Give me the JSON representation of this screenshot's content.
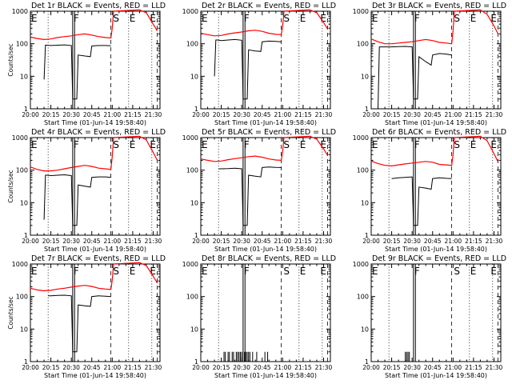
{
  "chart_data": [
    {
      "type": "line",
      "title": "Det 1r BLACK = Events, RED = LLD",
      "xlabel": "Start Time (01-Jun-14 19:58:40)",
      "ylabel": "Counts/sec",
      "x_ticks": [
        "20:00",
        "20:15",
        "20:30",
        "20:45",
        "21:00",
        "21:15",
        "21:30"
      ],
      "y_ticks": [
        "1",
        "10",
        "100",
        "1000"
      ],
      "ylim": [
        1,
        1000
      ],
      "yscale": "log",
      "region_labels": [
        {
          "label": "E",
          "x": "20:00"
        },
        {
          "label": "F",
          "x": "20:31"
        },
        {
          "label": "S",
          "x": "21:00"
        },
        {
          "label": "E",
          "x": "21:12"
        },
        {
          "label": "E",
          "x": "21:27"
        }
      ],
      "series": [
        {
          "color": "#ff0000",
          "x": [
            "20:00",
            "20:05",
            "20:10",
            "20:15",
            "20:20",
            "20:25",
            "20:30",
            "20:35",
            "20:40",
            "20:45",
            "20:50",
            "20:55",
            "20:59",
            "21:00",
            "21:01",
            "21:20",
            "21:25",
            "21:30",
            "21:33"
          ],
          "y": [
            160,
            145,
            135,
            140,
            155,
            165,
            175,
            190,
            200,
            185,
            165,
            155,
            150,
            300,
            1000,
            1100,
            900,
            400,
            250
          ]
        },
        {
          "color": "#000000",
          "x": [
            "20:10",
            "20:11",
            "20:12",
            "20:15",
            "20:20",
            "20:25",
            "20:30",
            "20:31",
            "20:34",
            "20:35",
            "20:40",
            "20:44",
            "20:45",
            "20:50",
            "20:55",
            "20:59"
          ],
          "y": [
            8,
            90,
            90,
            88,
            90,
            92,
            88,
            2,
            2,
            45,
            42,
            40,
            85,
            88,
            88,
            86
          ]
        }
      ]
    },
    {
      "type": "line",
      "title": "Det 2r BLACK = Events, RED = LLD",
      "xlabel": "Start Time (01-Jun-14 19:58:40)",
      "ylabel": "",
      "x_ticks": [
        "20:00",
        "20:15",
        "20:30",
        "20:45",
        "21:00",
        "21:15",
        "21:30"
      ],
      "y_ticks": [
        "1",
        "10",
        "100",
        "1000"
      ],
      "ylim": [
        1,
        1000
      ],
      "yscale": "log",
      "region_labels": [
        {
          "label": "E",
          "x": "20:00"
        },
        {
          "label": "F",
          "x": "20:31"
        },
        {
          "label": "S",
          "x": "21:00"
        },
        {
          "label": "E",
          "x": "21:12"
        },
        {
          "label": "E",
          "x": "21:27"
        }
      ],
      "series": [
        {
          "color": "#ff0000",
          "x": [
            "20:00",
            "20:05",
            "20:10",
            "20:15",
            "20:20",
            "20:25",
            "20:30",
            "20:35",
            "20:40",
            "20:45",
            "20:50",
            "20:55",
            "20:59",
            "21:00",
            "21:01",
            "21:20",
            "21:25",
            "21:30",
            "21:33"
          ],
          "y": [
            210,
            190,
            175,
            180,
            200,
            215,
            230,
            250,
            260,
            240,
            210,
            195,
            190,
            350,
            1000,
            1100,
            900,
            450,
            280
          ]
        },
        {
          "color": "#000000",
          "x": [
            "20:10",
            "20:11",
            "20:12",
            "20:15",
            "20:20",
            "20:25",
            "20:30",
            "20:31",
            "20:34",
            "20:35",
            "20:40",
            "20:44",
            "20:45",
            "20:50",
            "20:55",
            "20:59"
          ],
          "y": [
            10,
            130,
            130,
            125,
            130,
            135,
            128,
            2,
            2,
            65,
            60,
            58,
            115,
            120,
            118,
            115
          ]
        }
      ]
    },
    {
      "type": "line",
      "title": "Det 3r BLACK = Events, RED = LLD",
      "xlabel": "Start Time (01-Jun-14 19:58:40)",
      "ylabel": "",
      "x_ticks": [
        "20:00",
        "20:15",
        "20:30",
        "20:45",
        "21:00",
        "21:15",
        "21:30"
      ],
      "y_ticks": [
        "1",
        "10",
        "100",
        "1000"
      ],
      "ylim": [
        1,
        1000
      ],
      "yscale": "log",
      "region_labels": [
        {
          "label": "E",
          "x": "20:00"
        },
        {
          "label": "F",
          "x": "20:31"
        },
        {
          "label": "S",
          "x": "21:00"
        },
        {
          "label": "E",
          "x": "21:12"
        },
        {
          "label": "E",
          "x": "21:27"
        }
      ],
      "series": [
        {
          "color": "#ff0000",
          "x": [
            "20:00",
            "20:05",
            "20:10",
            "20:15",
            "20:20",
            "20:25",
            "20:30",
            "20:35",
            "20:40",
            "20:45",
            "20:50",
            "20:55",
            "20:59",
            "21:00",
            "21:01",
            "21:20",
            "21:25",
            "21:30",
            "21:33"
          ],
          "y": [
            140,
            115,
            100,
            100,
            105,
            110,
            115,
            125,
            135,
            125,
            110,
            105,
            100,
            250,
            1000,
            1100,
            800,
            350,
            200
          ]
        },
        {
          "color": "#000000",
          "x": [
            "20:00",
            "20:05",
            "20:06",
            "20:15",
            "20:20",
            "20:25",
            "20:30",
            "20:31",
            "20:34",
            "20:35",
            "20:40",
            "20:44",
            "20:45",
            "20:50",
            "20:55",
            "20:59"
          ],
          "y": [
            1,
            1,
            80,
            80,
            82,
            83,
            80,
            2,
            2,
            40,
            28,
            22,
            45,
            50,
            48,
            45
          ]
        }
      ]
    },
    {
      "type": "line",
      "title": "Det 4r BLACK = Events, RED = LLD",
      "xlabel": "Start Time (01-Jun-14 19:58:40)",
      "ylabel": "Counts/sec",
      "x_ticks": [
        "20:00",
        "20:15",
        "20:30",
        "20:45",
        "21:00",
        "21:15",
        "21:30"
      ],
      "y_ticks": [
        "1",
        "10",
        "100",
        "1000"
      ],
      "ylim": [
        1,
        1000
      ],
      "yscale": "log",
      "region_labels": [
        {
          "label": "E",
          "x": "20:00"
        },
        {
          "label": "F",
          "x": "20:31"
        },
        {
          "label": "S",
          "x": "21:00"
        },
        {
          "label": "E",
          "x": "21:12"
        },
        {
          "label": "E",
          "x": "21:27"
        }
      ],
      "series": [
        {
          "color": "#ff0000",
          "x": [
            "20:00",
            "20:05",
            "20:10",
            "20:15",
            "20:20",
            "20:25",
            "20:30",
            "20:35",
            "20:40",
            "20:45",
            "20:50",
            "20:55",
            "20:59",
            "21:00",
            "21:01",
            "21:20",
            "21:25",
            "21:30",
            "21:33"
          ],
          "y": [
            125,
            105,
            95,
            95,
            100,
            110,
            120,
            130,
            140,
            130,
            115,
            110,
            105,
            260,
            1000,
            1100,
            850,
            350,
            200
          ]
        },
        {
          "color": "#000000",
          "x": [
            "20:10",
            "20:11",
            "20:12",
            "20:15",
            "20:20",
            "20:25",
            "20:30",
            "20:31",
            "20:34",
            "20:35",
            "20:40",
            "20:44",
            "20:45",
            "20:50",
            "20:55",
            "20:59"
          ],
          "y": [
            3,
            70,
            70,
            68,
            70,
            72,
            68,
            2,
            2,
            35,
            32,
            30,
            60,
            62,
            62,
            60
          ]
        }
      ]
    },
    {
      "type": "line",
      "title": "Det 5r BLACK = Events, RED = LLD",
      "xlabel": "Start Time (01-Jun-14 19:58:40)",
      "ylabel": "",
      "x_ticks": [
        "20:00",
        "20:15",
        "20:30",
        "20:45",
        "21:00",
        "21:15",
        "21:30"
      ],
      "y_ticks": [
        "1",
        "10",
        "100",
        "1000"
      ],
      "ylim": [
        1,
        1000
      ],
      "yscale": "log",
      "region_labels": [
        {
          "label": "E",
          "x": "20:00"
        },
        {
          "label": "F",
          "x": "20:31"
        },
        {
          "label": "S",
          "x": "21:00"
        },
        {
          "label": "E",
          "x": "21:12"
        },
        {
          "label": "E",
          "x": "21:27"
        }
      ],
      "series": [
        {
          "color": "#ff0000",
          "x": [
            "20:00",
            "20:05",
            "20:10",
            "20:15",
            "20:20",
            "20:25",
            "20:30",
            "20:35",
            "20:40",
            "20:45",
            "20:50",
            "20:55",
            "20:59",
            "21:00",
            "21:01",
            "21:20",
            "21:25",
            "21:30",
            "21:33"
          ],
          "y": [
            220,
            200,
            185,
            190,
            210,
            225,
            240,
            260,
            270,
            250,
            220,
            205,
            200,
            380,
            1000,
            1100,
            900,
            450,
            280
          ]
        },
        {
          "color": "#000000",
          "x": [
            "20:13",
            "20:15",
            "20:20",
            "20:25",
            "20:30",
            "20:31",
            "20:34",
            "20:35",
            "20:40",
            "20:44",
            "20:45",
            "20:50",
            "20:55",
            "20:59"
          ],
          "y": [
            110,
            110,
            112,
            115,
            110,
            2,
            2,
            70,
            65,
            62,
            120,
            125,
            122,
            120
          ]
        }
      ]
    },
    {
      "type": "line",
      "title": "Det 6r BLACK = Events, RED = LLD",
      "xlabel": "Start Time (01-Jun-14 19:58:40)",
      "ylabel": "",
      "x_ticks": [
        "20:00",
        "20:15",
        "20:30",
        "20:45",
        "21:00",
        "21:15",
        "21:30"
      ],
      "y_ticks": [
        "1",
        "10",
        "100",
        "1000"
      ],
      "ylim": [
        1,
        1000
      ],
      "yscale": "log",
      "region_labels": [
        {
          "label": "E",
          "x": "20:00"
        },
        {
          "label": "F",
          "x": "20:31"
        },
        {
          "label": "S",
          "x": "21:00"
        },
        {
          "label": "E",
          "x": "21:12"
        },
        {
          "label": "E",
          "x": "21:27"
        }
      ],
      "series": [
        {
          "color": "#ff0000",
          "x": [
            "20:00",
            "20:05",
            "20:10",
            "20:15",
            "20:20",
            "20:25",
            "20:30",
            "20:35",
            "20:40",
            "20:45",
            "20:50",
            "20:55",
            "20:59",
            "21:00",
            "21:01",
            "21:20",
            "21:25",
            "21:30",
            "21:33"
          ],
          "y": [
            190,
            160,
            140,
            135,
            145,
            155,
            165,
            175,
            185,
            175,
            150,
            145,
            140,
            300,
            1000,
            1100,
            800,
            320,
            180
          ]
        },
        {
          "color": "#000000",
          "x": [
            "20:15",
            "20:20",
            "20:25",
            "20:30",
            "20:31",
            "20:34",
            "20:35",
            "20:40",
            "20:44",
            "20:45",
            "20:50",
            "20:55",
            "20:59"
          ],
          "y": [
            55,
            58,
            60,
            62,
            2,
            2,
            30,
            28,
            26,
            55,
            58,
            56,
            55
          ]
        }
      ]
    },
    {
      "type": "line",
      "title": "Det 7r BLACK = Events, RED = LLD",
      "xlabel": "Start Time (01-Jun-14 19:58:40)",
      "ylabel": "Counts/sec",
      "x_ticks": [
        "20:00",
        "20:15",
        "20:30",
        "20:45",
        "21:00",
        "21:15",
        "21:30"
      ],
      "y_ticks": [
        "1",
        "10",
        "100",
        "1000"
      ],
      "ylim": [
        1,
        1000
      ],
      "yscale": "log",
      "region_labels": [
        {
          "label": "E",
          "x": "20:00"
        },
        {
          "label": "F",
          "x": "20:31"
        },
        {
          "label": "S",
          "x": "21:00"
        },
        {
          "label": "E",
          "x": "21:12"
        },
        {
          "label": "E",
          "x": "21:27"
        }
      ],
      "series": [
        {
          "color": "#ff0000",
          "x": [
            "20:00",
            "20:05",
            "20:10",
            "20:15",
            "20:20",
            "20:25",
            "20:30",
            "20:35",
            "20:40",
            "20:45",
            "20:50",
            "20:55",
            "20:59",
            "21:00",
            "21:01",
            "21:20",
            "21:25",
            "21:30",
            "21:33"
          ],
          "y": [
            180,
            160,
            150,
            155,
            170,
            180,
            195,
            210,
            220,
            205,
            180,
            170,
            165,
            320,
            1000,
            1100,
            900,
            420,
            260
          ]
        },
        {
          "color": "#000000",
          "x": [
            "20:13",
            "20:15",
            "20:20",
            "20:25",
            "20:30",
            "20:31",
            "20:34",
            "20:35",
            "20:40",
            "20:44",
            "20:45",
            "20:50",
            "20:55",
            "20:59"
          ],
          "y": [
            105,
            105,
            108,
            110,
            105,
            2,
            2,
            55,
            52,
            50,
            100,
            105,
            102,
            100
          ]
        }
      ]
    },
    {
      "type": "line",
      "title": "Det 8r BLACK = Events, RED = LLD",
      "xlabel": "Start Time (01-Jun-14 19:58:40)",
      "ylabel": "",
      "x_ticks": [
        "20:00",
        "20:15",
        "20:30",
        "20:45",
        "21:00",
        "21:15",
        "21:30"
      ],
      "y_ticks": [
        "1",
        "10",
        "100",
        "1000"
      ],
      "ylim": [
        1,
        1000
      ],
      "yscale": "log",
      "region_labels": [
        {
          "label": "E",
          "x": "20:00"
        },
        {
          "label": "F",
          "x": "20:31"
        },
        {
          "label": "S",
          "x": "21:00"
        },
        {
          "label": "E",
          "x": "21:12"
        },
        {
          "label": "E",
          "x": "21:27"
        }
      ],
      "series": [],
      "spikes": {
        "color": "#000000",
        "value": 2,
        "x": [
          "20:17",
          "20:18",
          "20:20",
          "20:21",
          "20:23",
          "20:24",
          "20:26",
          "20:27",
          "20:28",
          "20:29",
          "20:30",
          "20:32",
          "20:33",
          "20:34",
          "20:35",
          "20:36",
          "20:38",
          "20:41",
          "20:47",
          "20:49"
        ]
      }
    },
    {
      "type": "line",
      "title": "Det 9r BLACK = Events, RED = LLD",
      "xlabel": "Start Time (01-Jun-14 19:58:40)",
      "ylabel": "",
      "x_ticks": [
        "20:00",
        "20:15",
        "20:30",
        "20:45",
        "21:00",
        "21:15",
        "21:30"
      ],
      "y_ticks": [
        "1",
        "10",
        "100",
        "1000"
      ],
      "ylim": [
        1,
        1000
      ],
      "yscale": "log",
      "region_labels": [
        {
          "label": "E",
          "x": "20:00"
        },
        {
          "label": "F",
          "x": "20:31"
        },
        {
          "label": "S",
          "x": "21:00"
        },
        {
          "label": "E",
          "x": "21:12"
        },
        {
          "label": "E",
          "x": "21:27"
        }
      ],
      "series": [],
      "spikes": {
        "color": "#000000",
        "value": 2,
        "x": [
          "20:25",
          "20:26",
          "20:27",
          "20:28"
        ]
      }
    }
  ]
}
